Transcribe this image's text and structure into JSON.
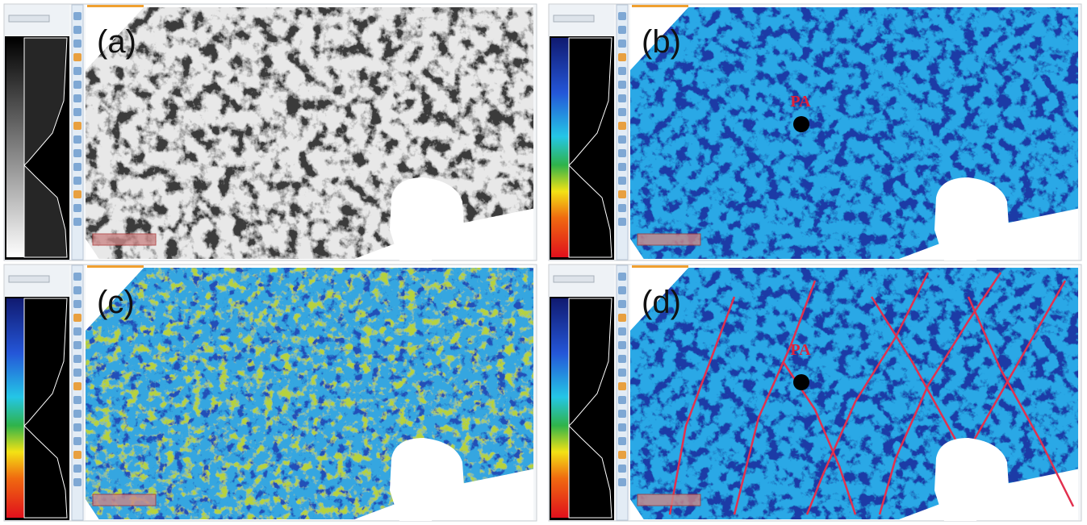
{
  "panels": [
    {
      "label": "(a)"
    },
    {
      "label": "(b)",
      "marker": "PA"
    },
    {
      "label": "(c)"
    },
    {
      "label": "(d)",
      "marker": "PA"
    }
  ]
}
